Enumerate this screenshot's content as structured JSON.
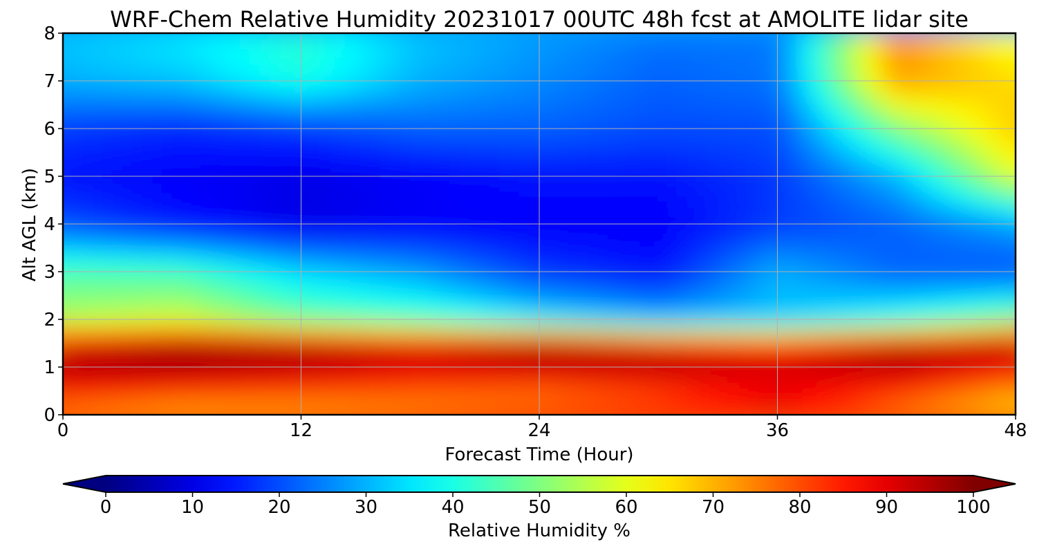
{
  "chart_data": {
    "type": "heatmap",
    "title": "WRF-Chem Relative Humidity 20231017 00UTC 48h fcst at AMOLITE lidar site",
    "xlabel": "Forecast Time (Hour)",
    "ylabel": "Alt AGL (km)",
    "xlim": [
      0,
      48
    ],
    "ylim": [
      0,
      8
    ],
    "x_ticks": [
      "0",
      "12",
      "24",
      "36",
      "48"
    ],
    "y_ticks": [
      "0",
      "1",
      "2",
      "3",
      "4",
      "5",
      "6",
      "7",
      "8"
    ],
    "grid": true,
    "colormap": "jet",
    "colorbar": {
      "label": "Relative Humidity %",
      "min": 0,
      "max": 100,
      "ticks": [
        "0",
        "10",
        "20",
        "30",
        "40",
        "50",
        "60",
        "70",
        "80",
        "90",
        "100"
      ],
      "extend": "both",
      "orientation": "horizontal"
    },
    "x": [
      0,
      6,
      12,
      18,
      24,
      30,
      36,
      42,
      48
    ],
    "y": [
      0,
      0.5,
      1,
      1.5,
      2,
      3,
      4,
      5,
      6,
      7,
      8
    ],
    "z": [
      [
        72,
        68,
        70,
        74,
        80,
        85,
        92,
        75,
        66
      ],
      [
        85,
        82,
        80,
        78,
        76,
        80,
        88,
        82,
        72
      ],
      [
        96,
        97,
        95,
        92,
        94,
        96,
        93,
        96,
        88
      ],
      [
        90,
        95,
        94,
        90,
        95,
        88,
        84,
        92,
        96
      ],
      [
        55,
        58,
        48,
        44,
        36,
        30,
        32,
        40,
        50
      ],
      [
        45,
        44,
        34,
        28,
        18,
        14,
        30,
        22,
        20
      ],
      [
        20,
        14,
        10,
        12,
        12,
        12,
        18,
        22,
        28
      ],
      [
        14,
        12,
        10,
        12,
        14,
        14,
        18,
        30,
        60
      ],
      [
        18,
        16,
        18,
        22,
        22,
        20,
        20,
        50,
        68
      ],
      [
        30,
        32,
        40,
        30,
        26,
        22,
        24,
        72,
        66
      ],
      [
        32,
        36,
        42,
        32,
        28,
        24,
        24,
        74,
        60
      ]
    ]
  }
}
